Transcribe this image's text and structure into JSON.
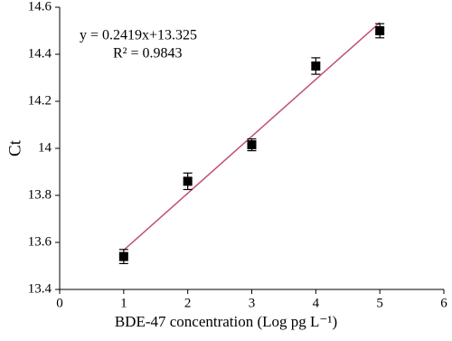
{
  "chart_data": {
    "type": "scatter",
    "x_label": "BDE-47 concentration (Log pg L⁻¹)",
    "y_label": "Ct",
    "annotations": [
      "y = 0.2419x+13.325",
      "R² = 0.9843"
    ],
    "series": [
      {
        "color": "#000000",
        "x": [
          1,
          2,
          3,
          4,
          5
        ],
        "values": [
          13.54,
          13.86,
          14.015,
          14.35,
          14.5
        ],
        "errors": [
          0.03,
          0.035,
          0.025,
          0.035,
          0.03
        ]
      }
    ],
    "fit_line": {
      "color": "#c0506e",
      "x": [
        1,
        5
      ],
      "values": [
        13.567,
        14.535
      ]
    },
    "xlim": [
      0,
      6
    ],
    "xticks": [
      0,
      1,
      2,
      3,
      4,
      5,
      6
    ],
    "ylim": [
      13.4,
      14.6
    ],
    "yticks": [
      13.4,
      13.6,
      13.8,
      14,
      14.2,
      14.4,
      14.6
    ],
    "grid": false
  }
}
